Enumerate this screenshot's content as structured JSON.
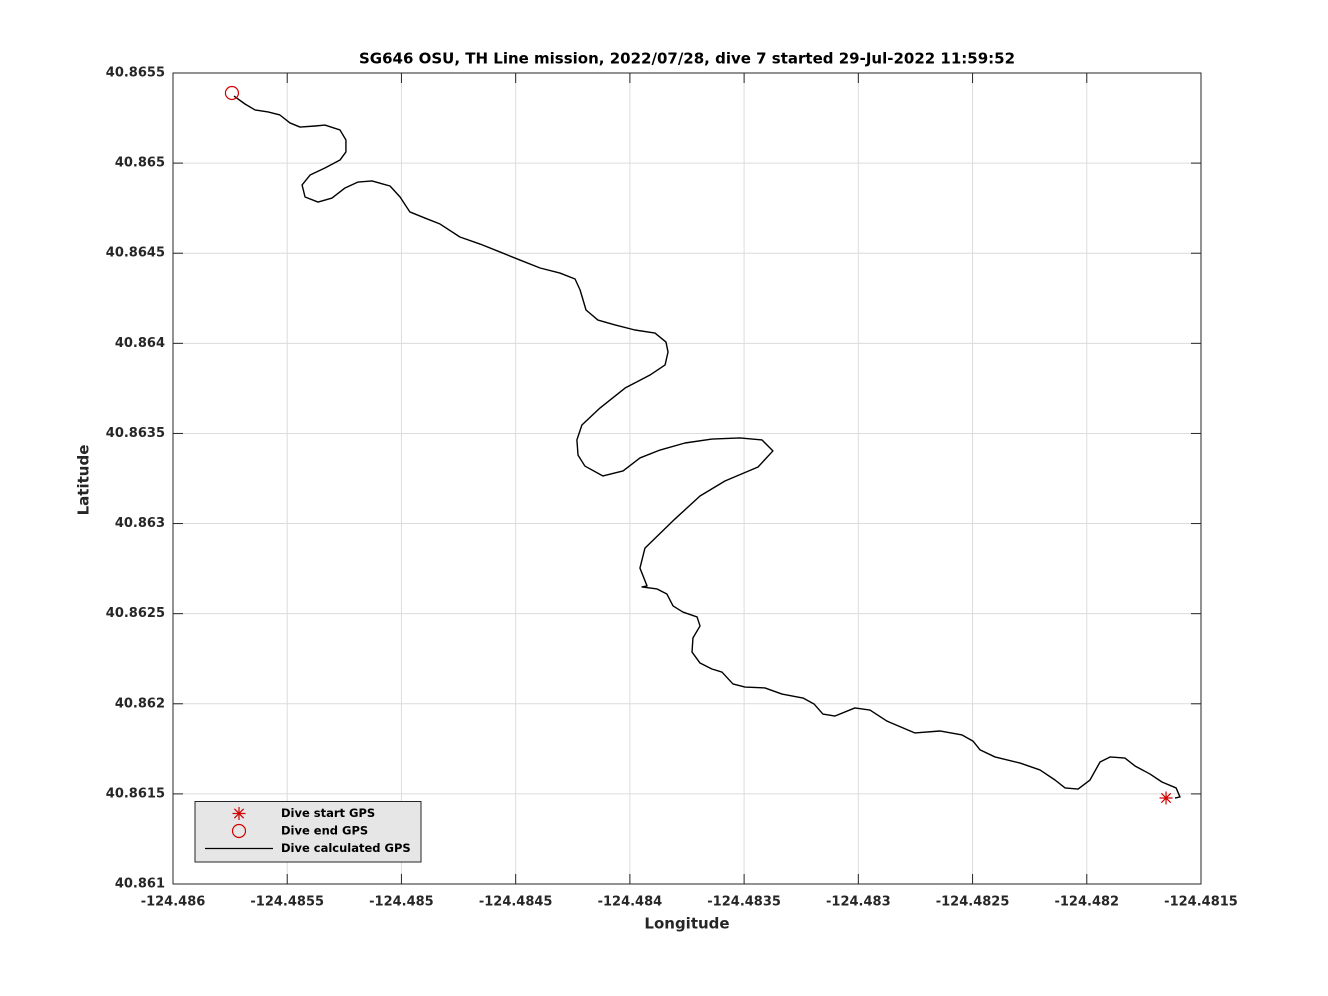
{
  "chart_data": {
    "type": "line",
    "title": "SG646 OSU, TH Line mission, 2022/07/28, dive 7 started 29-Jul-2022 11:59:52",
    "xlabel": "Longitude",
    "ylabel": "Latitude",
    "xlim": [
      -124.486,
      -124.4815
    ],
    "ylim": [
      40.861,
      40.8655
    ],
    "xticks": [
      -124.486,
      -124.4855,
      -124.485,
      -124.4845,
      -124.484,
      -124.4835,
      -124.483,
      -124.4825,
      -124.482,
      -124.4815
    ],
    "yticks": [
      40.861,
      40.8615,
      40.862,
      40.8625,
      40.863,
      40.8635,
      40.864,
      40.8645,
      40.865,
      40.8655
    ],
    "grid": true,
    "legend": "lower left",
    "series": [
      {
        "name": "Dive start GPS",
        "color": "#d00000",
        "marker": "asterisk",
        "x": [
          -124.481653
        ],
        "values": [
          40.861477
        ]
      },
      {
        "name": "Dive end GPS",
        "color": "#d00000",
        "marker": "circle",
        "x": [
          -124.485742
        ],
        "values": [
          40.865389
        ]
      },
      {
        "name": "Dive calculated GPS",
        "color": "#000000",
        "marker": "none",
        "x": [
          -124.485733,
          -124.485685,
          -124.485641,
          -124.485584,
          -124.485532,
          -124.485488,
          -124.485444,
          -124.485378,
          -124.485335,
          -124.485269,
          -124.485243,
          -124.485243,
          -124.485269,
          -124.485335,
          -124.4854,
          -124.485435,
          -124.485422,
          -124.485365,
          -124.485304,
          -124.485247,
          -124.48519,
          -124.485129,
          -124.48505,
          -124.485006,
          -124.484963,
          -124.484897,
          -124.484831,
          -124.484744,
          -124.484656,
          -124.484569,
          -124.484481,
          -124.484393,
          -124.484306,
          -124.48424,
          -124.484218,
          -124.484192,
          -124.48414,
          -124.484065,
          -124.483978,
          -124.48389,
          -124.483842,
          -124.483833,
          -124.483846,
          -124.483912,
          -124.484021,
          -124.484131,
          -124.48421,
          -124.484232,
          -124.484227,
          -124.484197,
          -124.484118,
          -124.48403,
          -124.483956,
          -124.483868,
          -124.483759,
          -124.483641,
          -124.483518,
          -124.483422,
          -124.483374,
          -124.483439,
          -124.483584,
          -124.483693,
          -124.483803,
          -124.483934,
          -124.483956,
          -124.483925,
          -124.483947,
          -124.483881,
          -124.483838,
          -124.483811,
          -124.483768,
          -124.483706,
          -124.483693,
          -124.483724,
          -124.483728,
          -124.483693,
          -124.483641,
          -124.483597,
          -124.483549,
          -124.483496,
          -124.483409,
          -124.483334,
          -124.483242,
          -124.483194,
          -124.483155,
          -124.483102,
          -124.483015,
          -124.482949,
          -124.482875,
          -124.482752,
          -124.482643,
          -124.482546,
          -124.482498,
          -124.482467,
          -124.482402,
          -124.482292,
          -124.482205,
          -124.482139,
          -124.482095,
          -124.482038,
          -124.481986,
          -124.481942,
          -124.481898,
          -124.481833,
          -124.481789,
          -124.481723,
          -124.481671,
          -124.481609,
          -124.481592,
          -124.481614
        ],
        "values": [
          40.865372,
          40.865328,
          40.865295,
          40.865284,
          40.865267,
          40.865223,
          40.8652,
          40.865206,
          40.865211,
          40.865184,
          40.865128,
          40.865062,
          40.865017,
          40.864973,
          40.864934,
          40.864879,
          40.864812,
          40.864784,
          40.864806,
          40.864862,
          40.864895,
          40.864901,
          40.864873,
          40.864812,
          40.864729,
          40.864695,
          40.864662,
          40.86459,
          40.864551,
          40.864507,
          40.864462,
          40.864418,
          40.86439,
          40.864357,
          40.864296,
          40.864185,
          40.864129,
          40.864102,
          40.864074,
          40.864057,
          40.864007,
          40.863952,
          40.86388,
          40.863824,
          40.863752,
          40.863641,
          40.863547,
          40.863464,
          40.86338,
          40.863319,
          40.863264,
          40.863292,
          40.863364,
          40.863408,
          40.863447,
          40.863469,
          40.863475,
          40.863464,
          40.863403,
          40.863314,
          40.863236,
          40.863153,
          40.863025,
          40.862864,
          40.862753,
          40.862654,
          40.862648,
          40.862637,
          40.862609,
          40.862543,
          40.862509,
          40.862482,
          40.862432,
          40.862365,
          40.862287,
          40.862226,
          40.862193,
          40.862176,
          40.86211,
          40.862093,
          40.862088,
          40.862054,
          40.862032,
          40.861999,
          40.861943,
          40.861932,
          40.861977,
          40.861965,
          40.861904,
          40.861838,
          40.861849,
          40.861827,
          40.861793,
          40.861744,
          40.861705,
          40.861671,
          40.861633,
          40.861577,
          40.861533,
          40.861527,
          40.861577,
          40.861677,
          40.861705,
          40.861699,
          40.861655,
          40.86161,
          40.861566,
          40.861533,
          40.861483,
          40.861477
        ]
      }
    ]
  }
}
